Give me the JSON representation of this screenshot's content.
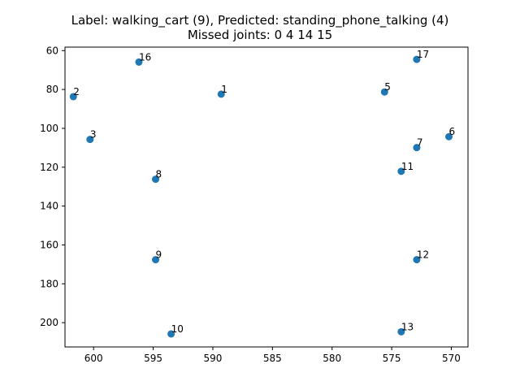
{
  "chart_data": {
    "type": "scatter",
    "title": "Label: walking_cart (9), Predicted: standing_phone_talking (4)",
    "subtitle": "Missed joints: 0 4 14 15",
    "xlabel": "",
    "ylabel": "",
    "x_inverted": true,
    "y_inverted": true,
    "xlim": [
      602.4,
      568.6
    ],
    "ylim": [
      212.5,
      58.2
    ],
    "xticks": [
      600,
      595,
      590,
      585,
      580,
      575,
      570
    ],
    "yticks": [
      60,
      80,
      100,
      120,
      140,
      160,
      180,
      200
    ],
    "grid": false,
    "marker_color": "#1f77b4",
    "points": [
      {
        "label": "1",
        "x": 589.3,
        "y": 82.4
      },
      {
        "label": "2",
        "x": 601.7,
        "y": 83.7
      },
      {
        "label": "3",
        "x": 600.3,
        "y": 105.7
      },
      {
        "label": "5",
        "x": 575.6,
        "y": 81.3
      },
      {
        "label": "6",
        "x": 570.2,
        "y": 104.3
      },
      {
        "label": "7",
        "x": 572.9,
        "y": 109.9
      },
      {
        "label": "8",
        "x": 594.8,
        "y": 126.2
      },
      {
        "label": "9",
        "x": 594.8,
        "y": 167.6
      },
      {
        "label": "10",
        "x": 593.5,
        "y": 205.8
      },
      {
        "label": "11",
        "x": 574.2,
        "y": 122.1
      },
      {
        "label": "12",
        "x": 572.9,
        "y": 167.6
      },
      {
        "label": "13",
        "x": 574.2,
        "y": 204.7
      },
      {
        "label": "16",
        "x": 596.2,
        "y": 65.9
      },
      {
        "label": "17",
        "x": 572.9,
        "y": 64.5
      }
    ]
  }
}
